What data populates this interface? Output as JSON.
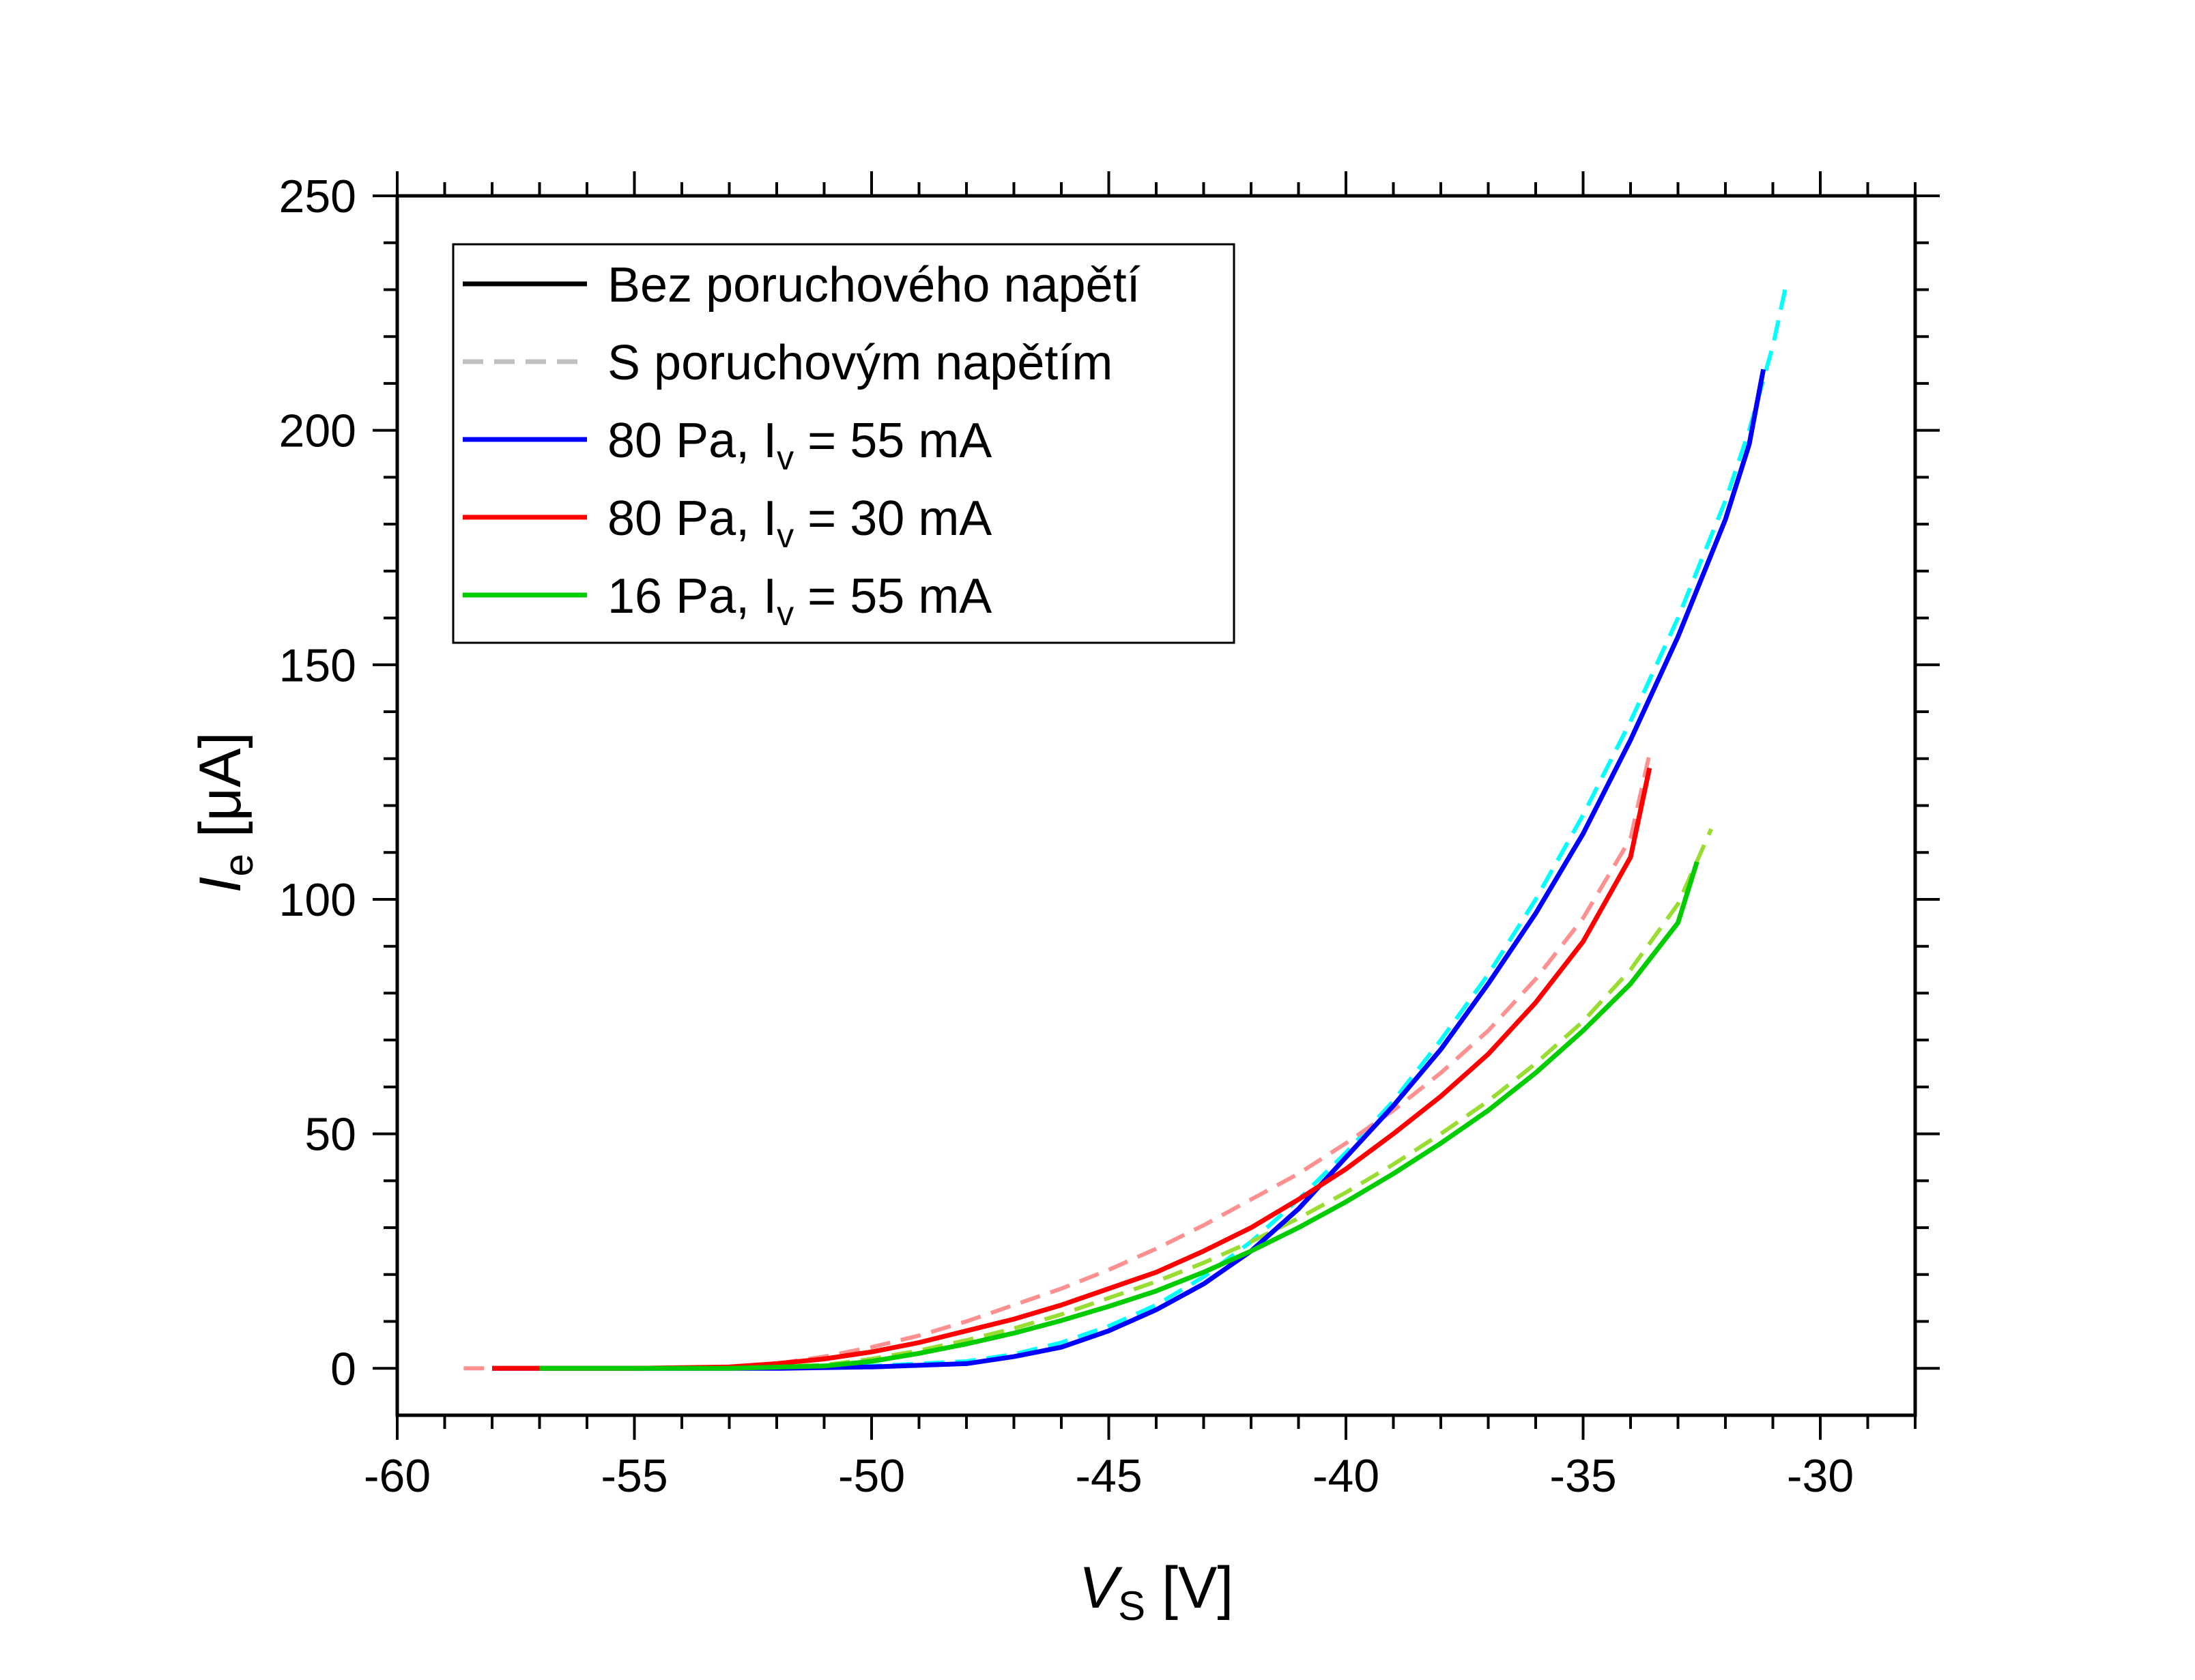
{
  "chart_data": {
    "type": "line",
    "xlabel": "V",
    "xlabel_sub": "S",
    "xlabel_unit": "[V]",
    "ylabel": "I",
    "ylabel_sub": "e",
    "ylabel_unit": "[μA]",
    "xlim": [
      -60,
      -28
    ],
    "ylim": [
      -10,
      250
    ],
    "xticks": [
      -60,
      -55,
      -50,
      -45,
      -40,
      -35,
      -30
    ],
    "yticks": [
      0,
      50,
      100,
      150,
      200,
      250
    ],
    "xtick_labels": [
      "-60",
      "-55",
      "-50",
      "-45",
      "-40",
      "-35",
      "-30"
    ],
    "ytick_labels": [
      "0",
      "50",
      "100",
      "150",
      "200",
      "250"
    ],
    "grid": false,
    "legend_position": "top-left",
    "legend": [
      {
        "text": "Bez poruchového napětí",
        "color": "#000000",
        "style": "solid"
      },
      {
        "text": "S poruchovým napětím",
        "color": "#c0c0c0",
        "style": "dashed"
      },
      {
        "text": "80 Pa, I",
        "sub": "v",
        "suffix": " = 55 mA",
        "color": "#0000ff",
        "style": "solid"
      },
      {
        "text": "80 Pa, I",
        "sub": "v",
        "suffix": " = 30 mA",
        "color": "#ff0000",
        "style": "solid"
      },
      {
        "text": "16 Pa, I",
        "sub": "v",
        "suffix": " = 55 mA",
        "color": "#00cc00",
        "style": "solid"
      }
    ],
    "series": [
      {
        "color": "#00ffff",
        "style": "dashed",
        "x": [
          -57.5,
          -55,
          -52,
          -50,
          -48,
          -47,
          -46,
          -45,
          -44,
          -43,
          -42,
          -41,
          -40,
          -39,
          -38,
          -37,
          -36,
          -35,
          -34,
          -33,
          -32,
          -31.5,
          -31,
          -30.7
        ],
        "y": [
          0,
          0,
          0,
          0.5,
          1.5,
          3,
          5.5,
          9,
          13.5,
          19.5,
          27,
          36,
          46,
          57,
          70,
          84,
          100,
          118,
          138,
          160,
          185,
          200,
          218,
          232
        ]
      },
      {
        "color": "#ff9090",
        "style": "dashed",
        "x": [
          -58.6,
          -57,
          -55,
          -53,
          -52,
          -51,
          -50,
          -49,
          -48,
          -47,
          -46,
          -45,
          -44,
          -43,
          -42,
          -41,
          -40,
          -39,
          -38,
          -37,
          -36,
          -35,
          -34,
          -33.6
        ],
        "y": [
          0,
          0,
          0,
          0.3,
          1,
          2.5,
          4.5,
          7,
          10,
          13.5,
          17,
          21,
          25.5,
          30.5,
          36,
          41.5,
          48,
          55,
          63,
          72,
          83,
          96,
          113,
          131
        ]
      },
      {
        "color": "#99dd33",
        "style": "dashed",
        "x": [
          -57.5,
          -55,
          -53,
          -51,
          -50,
          -49,
          -48,
          -47,
          -46,
          -45,
          -44,
          -43,
          -42,
          -41,
          -40,
          -39,
          -38,
          -37,
          -36,
          -35,
          -34,
          -33,
          -32.3
        ],
        "y": [
          0,
          0,
          0,
          0.7,
          2,
          3.8,
          6,
          8.5,
          11.5,
          15,
          18.5,
          22.5,
          27,
          32,
          37.5,
          43.5,
          50,
          57,
          65,
          74,
          85,
          99,
          115
        ]
      },
      {
        "color": "#0000ff",
        "style": "solid",
        "x": [
          -58,
          -55,
          -52,
          -50,
          -48,
          -47,
          -46,
          -45,
          -44,
          -43,
          -42,
          -41,
          -40,
          -39,
          -38,
          -37,
          -36,
          -35,
          -34,
          -33,
          -32,
          -31.5,
          -31.2
        ],
        "y": [
          0,
          0,
          0,
          0.3,
          1,
          2.5,
          4.5,
          8,
          12.5,
          18,
          25,
          34,
          45,
          56,
          68,
          82,
          97,
          114,
          134,
          156,
          181,
          197,
          213
        ]
      },
      {
        "color": "#ff0000",
        "style": "solid",
        "x": [
          -58,
          -55,
          -53,
          -52,
          -51,
          -50,
          -49,
          -48,
          -47,
          -46,
          -45,
          -44,
          -43,
          -42,
          -41,
          -40,
          -39,
          -38,
          -37,
          -36,
          -35,
          -34,
          -33.6
        ],
        "y": [
          0,
          0,
          0.3,
          1,
          2,
          3.5,
          5.5,
          8,
          10.5,
          13.5,
          17,
          20.5,
          25,
          30,
          36,
          42.5,
          50,
          58,
          67,
          78,
          91,
          109,
          128
        ]
      },
      {
        "color": "#00cc00",
        "style": "solid",
        "x": [
          -57,
          -55,
          -53,
          -51,
          -50,
          -49,
          -48,
          -47,
          -46,
          -45,
          -44,
          -43,
          -42,
          -41,
          -40,
          -39,
          -38,
          -37,
          -36,
          -35,
          -34,
          -33,
          -32.6
        ],
        "y": [
          0,
          0,
          0,
          0.5,
          1.5,
          3.2,
          5.2,
          7.5,
          10.2,
          13.2,
          16.5,
          20.5,
          25,
          30,
          35.5,
          41.5,
          48,
          55,
          63,
          72,
          82,
          95,
          108
        ]
      }
    ]
  }
}
